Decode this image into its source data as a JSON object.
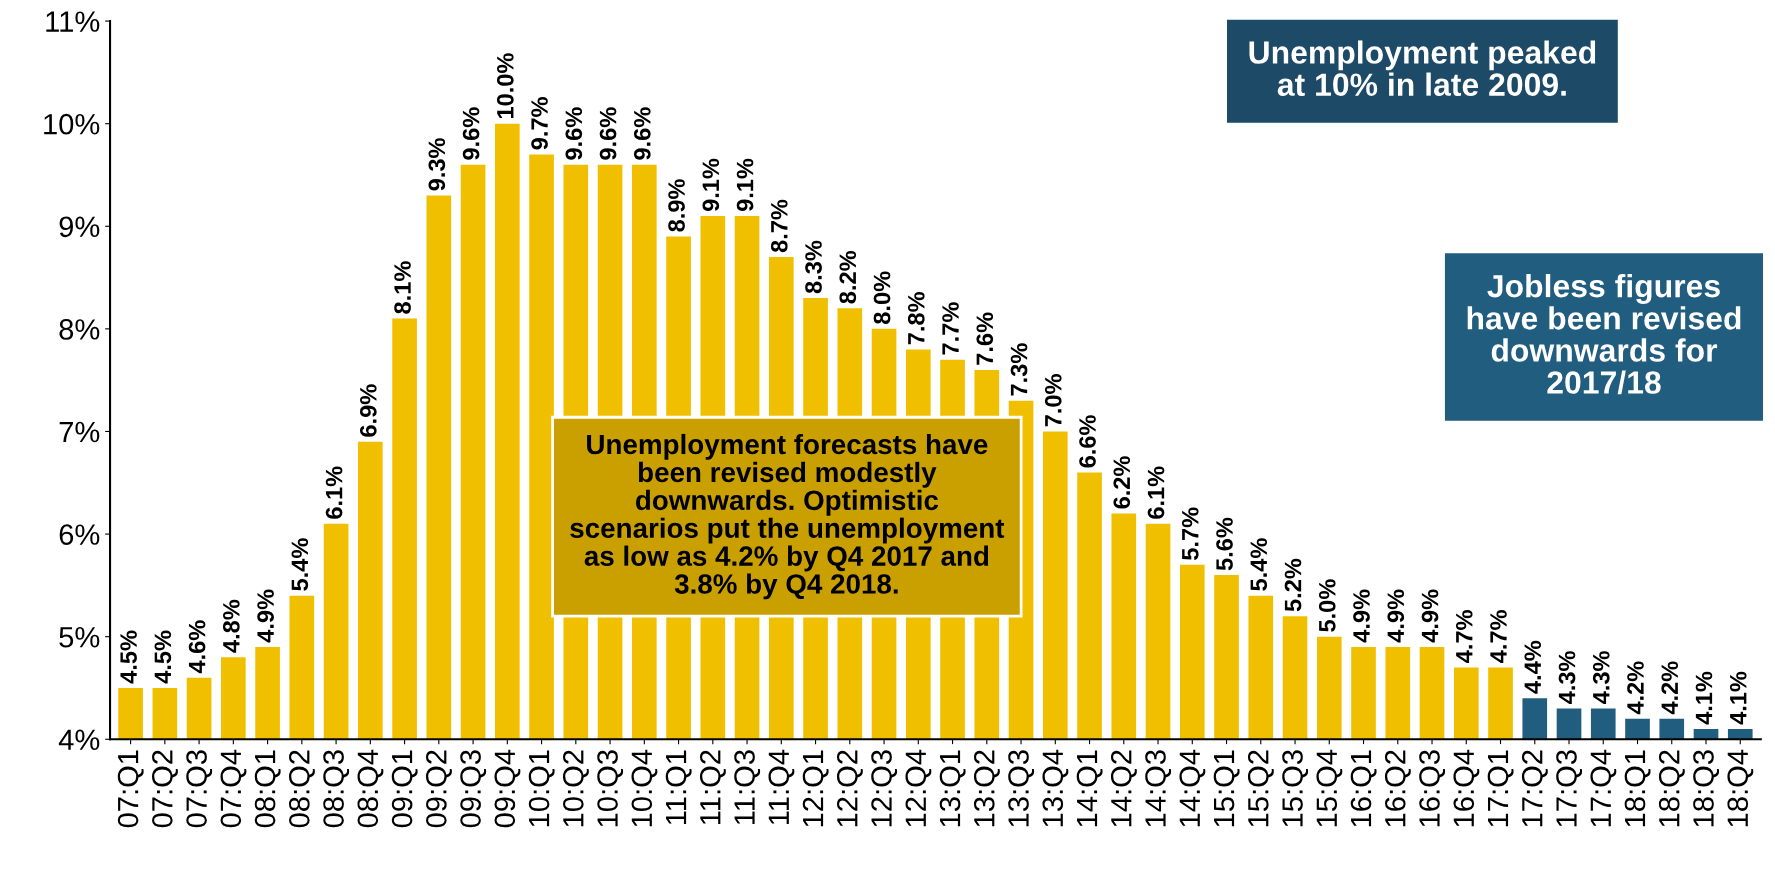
{
  "chart_data": {
    "type": "bar",
    "categories": [
      "07:Q1",
      "07:Q2",
      "07:Q3",
      "07:Q4",
      "08:Q1",
      "08:Q2",
      "08:Q3",
      "08:Q4",
      "09:Q1",
      "09:Q2",
      "09:Q3",
      "09:Q4",
      "10:Q1",
      "10:Q2",
      "10:Q3",
      "10:Q4",
      "11:Q1",
      "11:Q2",
      "11:Q3",
      "11:Q4",
      "12:Q1",
      "12:Q2",
      "12:Q3",
      "12:Q4",
      "13:Q1",
      "13:Q2",
      "13:Q3",
      "13:Q4",
      "14:Q1",
      "14:Q2",
      "14:Q3",
      "14:Q4",
      "15:Q1",
      "15:Q2",
      "15:Q3",
      "15:Q4",
      "16:Q1",
      "16:Q2",
      "16:Q3",
      "16:Q4",
      "17:Q1",
      "17:Q2",
      "17:Q3",
      "17:Q4",
      "18:Q1",
      "18:Q2",
      "18:Q3",
      "18:Q4"
    ],
    "values": [
      4.5,
      4.5,
      4.6,
      4.8,
      4.9,
      5.4,
      6.1,
      6.9,
      8.1,
      9.3,
      9.6,
      10.0,
      9.7,
      9.6,
      9.6,
      9.6,
      8.9,
      9.1,
      9.1,
      8.7,
      8.3,
      8.2,
      8.0,
      7.8,
      7.7,
      7.6,
      7.3,
      7.0,
      6.6,
      6.2,
      6.1,
      5.7,
      5.6,
      5.4,
      5.2,
      5.0,
      4.9,
      4.9,
      4.9,
      4.7,
      4.7,
      4.4,
      4.3,
      4.3,
      4.2,
      4.2,
      4.1,
      4.1
    ],
    "value_labels": [
      "4.5%",
      "4.5%",
      "4.6%",
      "4.8%",
      "4.9%",
      "5.4%",
      "6.1%",
      "6.9%",
      "8.1%",
      "9.3%",
      "9.6%",
      "10.0%",
      "9.7%",
      "9.6%",
      "9.6%",
      "9.6%",
      "8.9%",
      "9.1%",
      "9.1%",
      "8.7%",
      "8.3%",
      "8.2%",
      "8.0%",
      "7.8%",
      "7.7%",
      "7.6%",
      "7.3%",
      "7.0%",
      "6.6%",
      "6.2%",
      "6.1%",
      "5.7%",
      "5.6%",
      "5.4%",
      "5.2%",
      "5.0%",
      "4.9%",
      "4.9%",
      "4.9%",
      "4.7%",
      "4.7%",
      "4.4%",
      "4.3%",
      "4.3%",
      "4.2%",
      "4.2%",
      "4.1%",
      "4.1%"
    ],
    "colors": [
      "#f0c000",
      "#f0c000",
      "#f0c000",
      "#f0c000",
      "#f0c000",
      "#f0c000",
      "#f0c000",
      "#f0c000",
      "#f0c000",
      "#f0c000",
      "#f0c000",
      "#f0c000",
      "#f0c000",
      "#f0c000",
      "#f0c000",
      "#f0c000",
      "#f0c000",
      "#f0c000",
      "#f0c000",
      "#f0c000",
      "#f0c000",
      "#f0c000",
      "#f0c000",
      "#f0c000",
      "#f0c000",
      "#f0c000",
      "#f0c000",
      "#f0c000",
      "#f0c000",
      "#f0c000",
      "#f0c000",
      "#f0c000",
      "#f0c000",
      "#f0c000",
      "#f0c000",
      "#f0c000",
      "#f0c000",
      "#f0c000",
      "#f0c000",
      "#f0c000",
      "#f0c000",
      "#215d7e",
      "#215d7e",
      "#215d7e",
      "#215d7e",
      "#215d7e",
      "#215d7e",
      "#215d7e"
    ],
    "ylim": [
      4,
      11
    ],
    "yticks": [
      {
        "value": 4,
        "label": "4%"
      },
      {
        "value": 5,
        "label": "5%"
      },
      {
        "value": 6,
        "label": "6%"
      },
      {
        "value": 7,
        "label": "7%"
      },
      {
        "value": 8,
        "label": "8%"
      },
      {
        "value": 9,
        "label": "9%"
      },
      {
        "value": 10,
        "label": "10%"
      },
      {
        "value": 11,
        "label": "11%"
      }
    ],
    "grid": false,
    "annotations": [
      "Unemployment peaked\nat 10% in late 2009.",
      "Unemployment forecasts have\nbeen revised modestly\ndownwards. Optimistic\nscenarios put the unemployment\nas low as 4.2% by Q4 2017 and\n3.8% by Q4 2018.",
      "Jobless figures\nhave been revised\ndownwards for\n2017/18"
    ]
  }
}
